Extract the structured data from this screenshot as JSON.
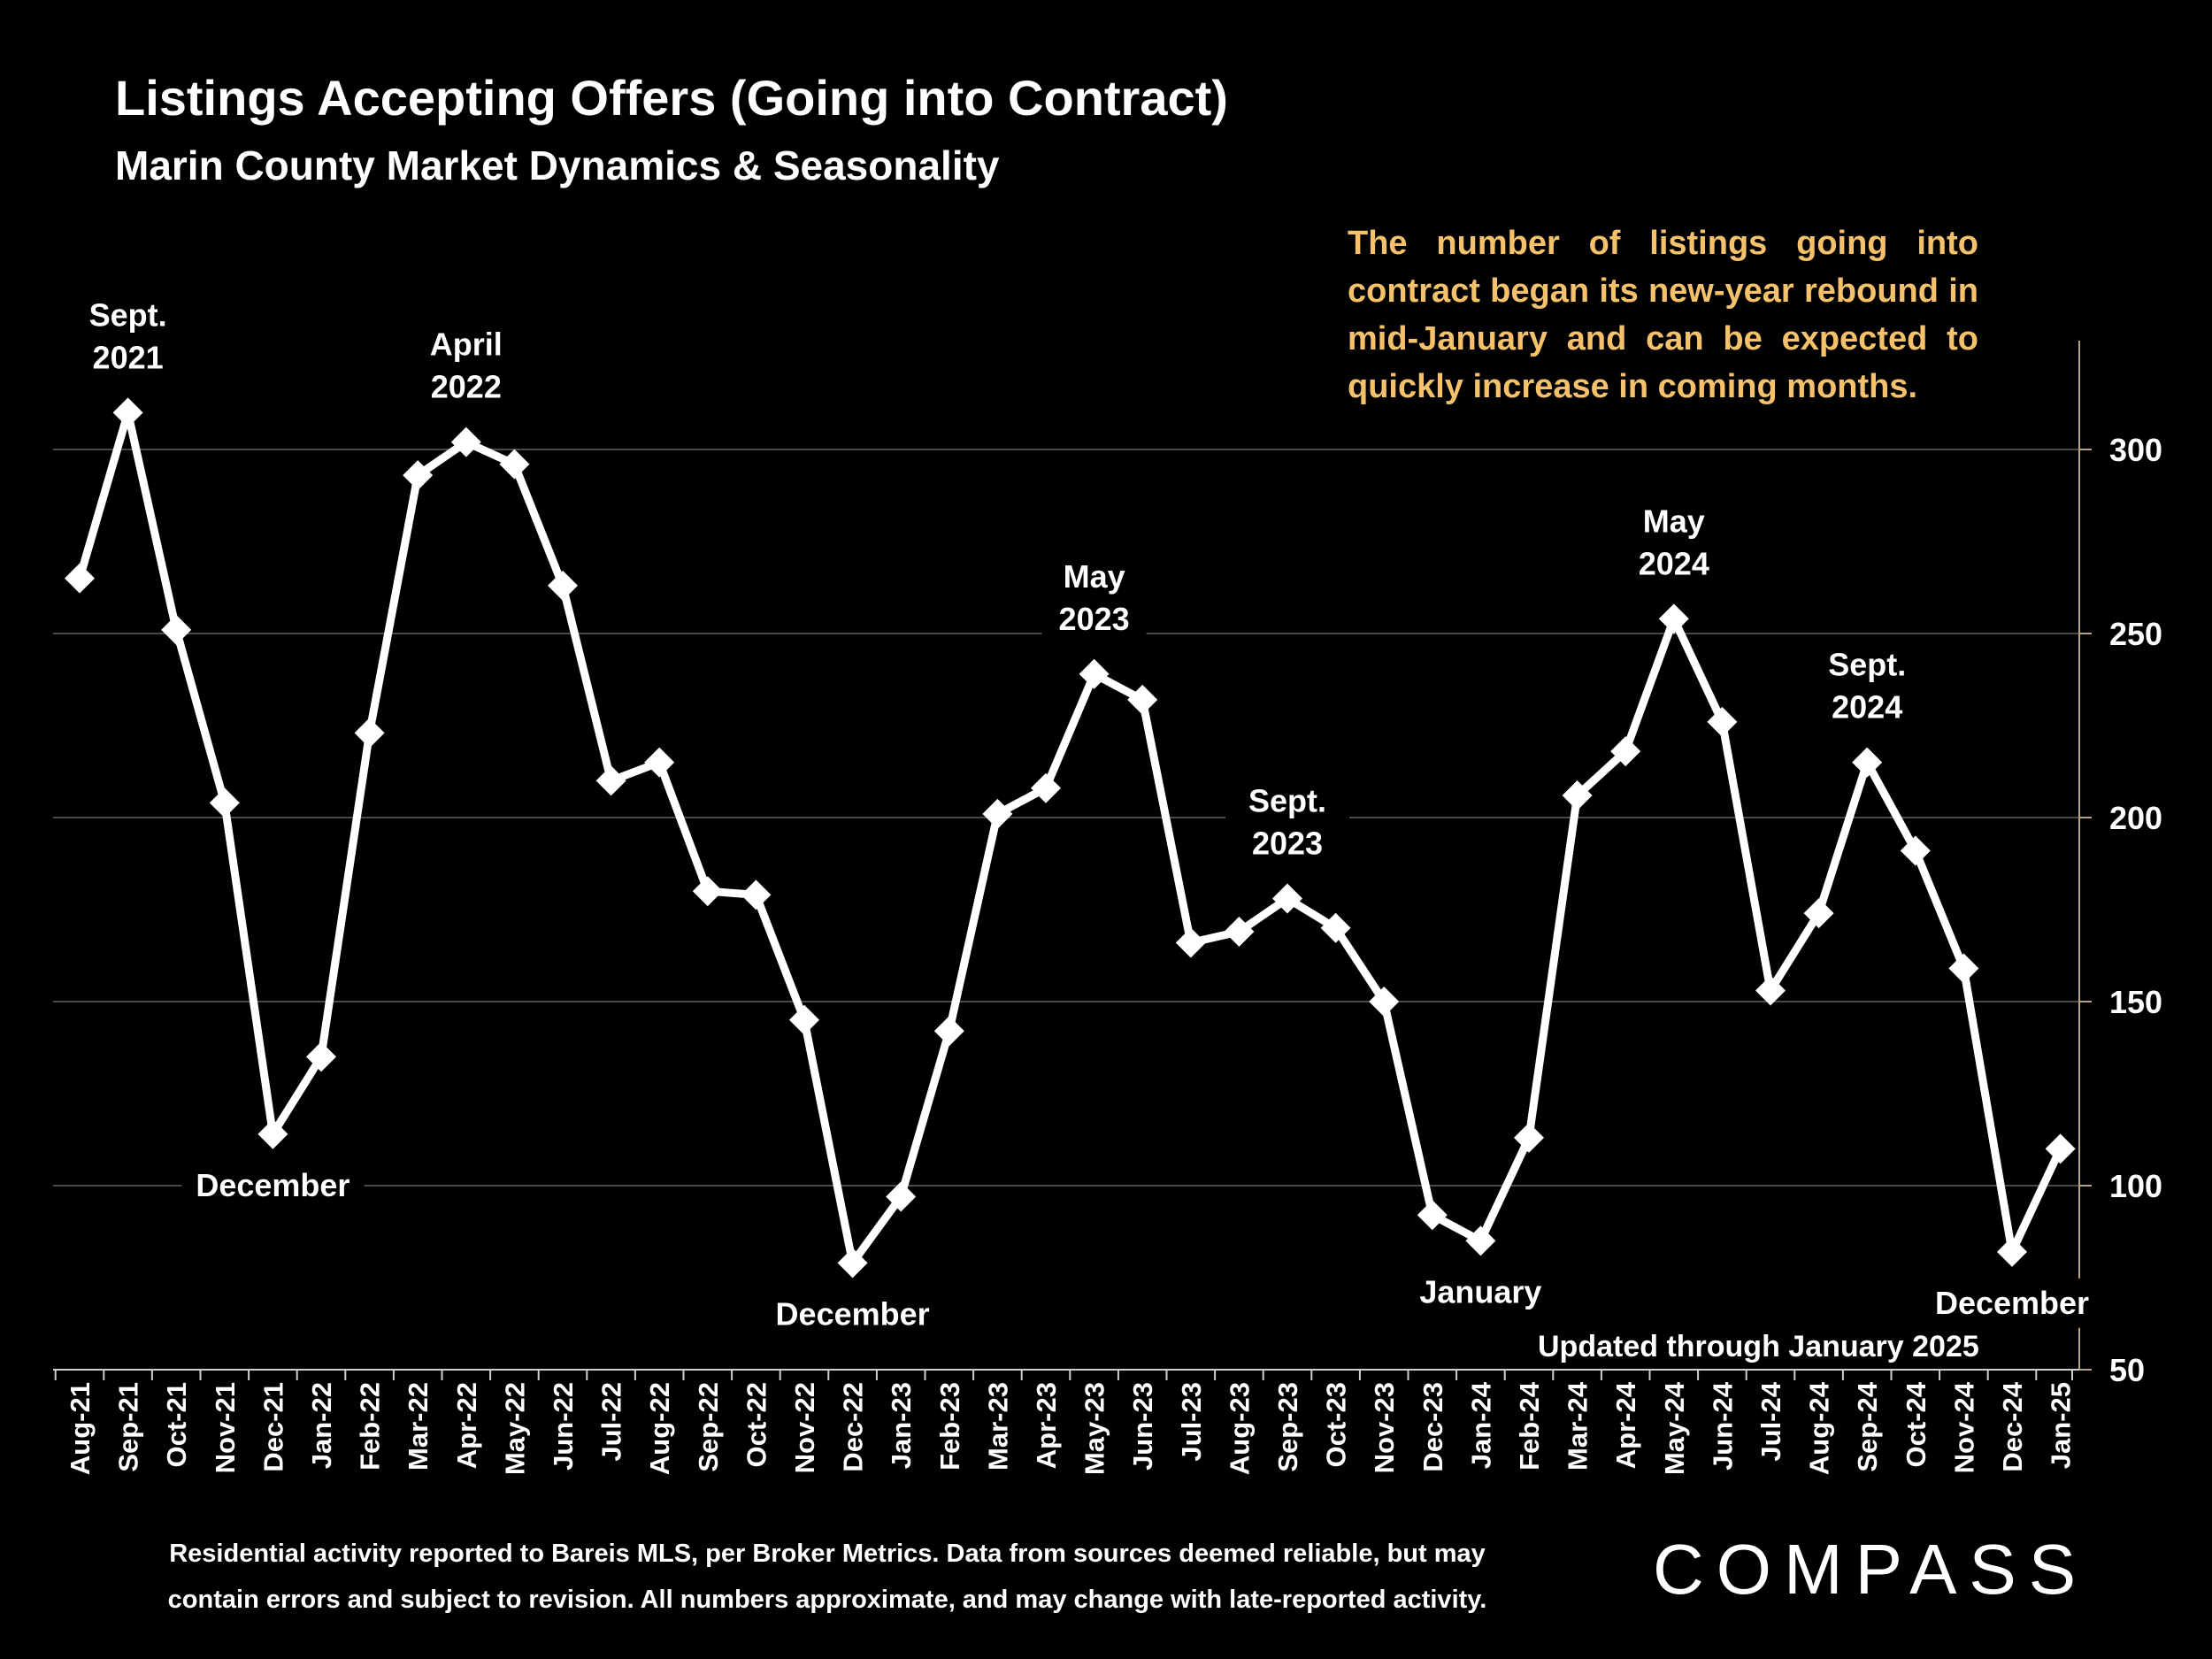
{
  "title": "Listings Accepting Offers (Going into Contract)",
  "subtitle": "Marin County Market Dynamics & Seasonality",
  "callout": "The number of listings going into contract began its new-year rebound in mid-January and can be expected to quickly increase in coming months.",
  "updated": "Updated through January 2025",
  "footnote_line1": "Residential activity reported to Bareis MLS, per Broker Metrics. Data from sources deemed reliable, but may",
  "footnote_line2": "contain errors and subject to revision. All numbers approximate, and may change with late-reported activity.",
  "logo": "COMPASS",
  "colors": {
    "line": "#ffffff",
    "grid": "#4a4a4a",
    "axis": "#b8a27a",
    "callout": "#f5c26b"
  },
  "chart_data": {
    "type": "line",
    "title": "Listings Accepting Offers (Going into Contract)",
    "ylabel": "",
    "ylim": [
      50,
      330
    ],
    "yticks": [
      50,
      100,
      150,
      200,
      250,
      300
    ],
    "grid": true,
    "categories": [
      "Aug-21",
      "Sep-21",
      "Oct-21",
      "Nov-21",
      "Dec-21",
      "Jan-22",
      "Feb-22",
      "Mar-22",
      "Apr-22",
      "May-22",
      "Jun-22",
      "Jul-22",
      "Aug-22",
      "Sep-22",
      "Oct-22",
      "Nov-22",
      "Dec-22",
      "Jan-23",
      "Feb-23",
      "Mar-23",
      "Apr-23",
      "May-23",
      "Jun-23",
      "Jul-23",
      "Aug-23",
      "Sep-23",
      "Oct-23",
      "Nov-23",
      "Dec-23",
      "Jan-24",
      "Feb-24",
      "Mar-24",
      "Apr-24",
      "May-24",
      "Jun-24",
      "Jul-24",
      "Aug-24",
      "Sep-24",
      "Oct-24",
      "Nov-24",
      "Dec-24",
      "Jan-25"
    ],
    "series": [
      {
        "name": "Listings Accepting Offers",
        "values": [
          265,
          310,
          251,
          204,
          114,
          135,
          223,
          293,
          302,
          296,
          263,
          210,
          215,
          180,
          179,
          145,
          79,
          97,
          142,
          201,
          208,
          239,
          232,
          166,
          169,
          178,
          170,
          150,
          92,
          85,
          113,
          206,
          218,
          254,
          226,
          153,
          174,
          215,
          191,
          159,
          82,
          110
        ]
      }
    ],
    "annotations": [
      {
        "index": 1,
        "lines": [
          "Sept.",
          "2021"
        ],
        "position": "above"
      },
      {
        "index": 4,
        "lines": [
          "December"
        ],
        "position": "below"
      },
      {
        "index": 8,
        "lines": [
          "April",
          "2022"
        ],
        "position": "above"
      },
      {
        "index": 16,
        "lines": [
          "December"
        ],
        "position": "below"
      },
      {
        "index": 21,
        "lines": [
          "May",
          "2023"
        ],
        "position": "above"
      },
      {
        "index": 25,
        "lines": [
          "Sept.",
          "2023"
        ],
        "position": "above"
      },
      {
        "index": 29,
        "lines": [
          "January"
        ],
        "position": "below"
      },
      {
        "index": 33,
        "lines": [
          "May",
          "2024"
        ],
        "position": "above"
      },
      {
        "index": 37,
        "lines": [
          "Sept.",
          "2024"
        ],
        "position": "above"
      },
      {
        "index": 40,
        "lines": [
          "December"
        ],
        "position": "below"
      }
    ]
  }
}
